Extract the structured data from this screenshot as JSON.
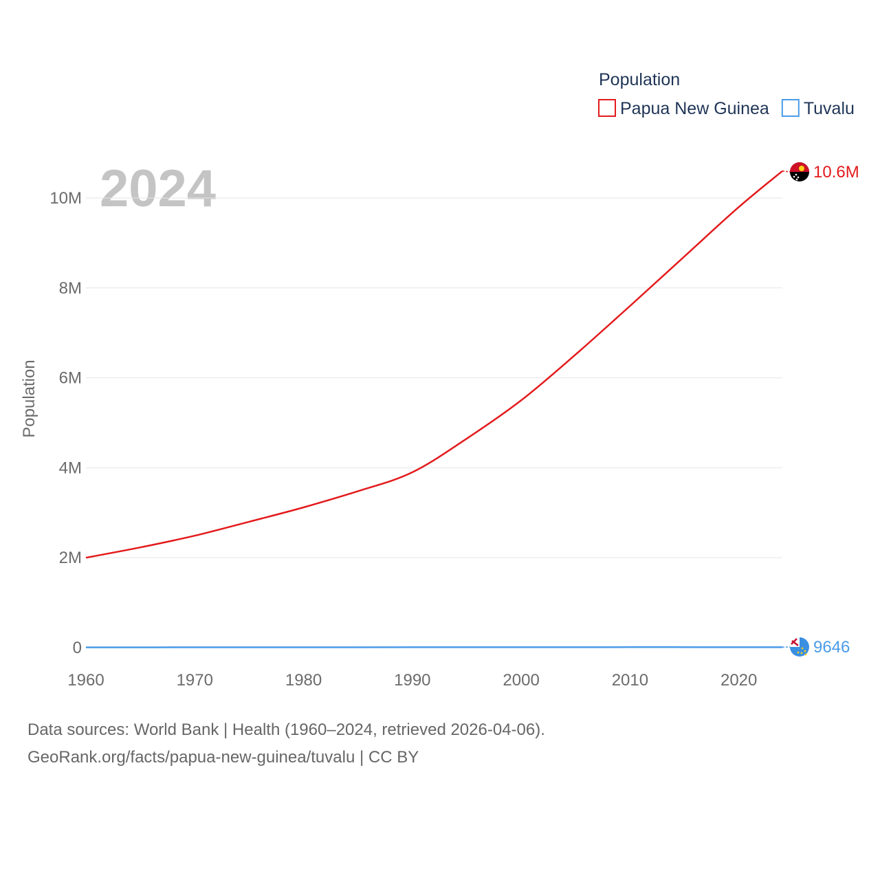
{
  "chart_data": {
    "type": "line",
    "title": "Population",
    "ylabel": "Population",
    "xlabel": "",
    "year_label": "2024",
    "xlim": [
      1960,
      2024
    ],
    "ylim": [
      0,
      10000000
    ],
    "x_ticks": [
      {
        "value": 1960,
        "label": "1960"
      },
      {
        "value": 1970,
        "label": "1970"
      },
      {
        "value": 1980,
        "label": "1980"
      },
      {
        "value": 1990,
        "label": "1990"
      },
      {
        "value": 2000,
        "label": "2000"
      },
      {
        "value": 2010,
        "label": "2010"
      },
      {
        "value": 2020,
        "label": "2020"
      }
    ],
    "y_ticks": [
      {
        "value": 0,
        "label": "0"
      },
      {
        "value": 2000000,
        "label": "2M"
      },
      {
        "value": 4000000,
        "label": "4M"
      },
      {
        "value": 6000000,
        "label": "6M"
      },
      {
        "value": 8000000,
        "label": "8M"
      },
      {
        "value": 10000000,
        "label": "10M"
      }
    ],
    "grid": true,
    "legend_position": "top-right",
    "series": [
      {
        "name": "Papua New Guinea",
        "color": "#e31a1c",
        "end_label": "10.6M",
        "flag_icon": "papua-new-guinea-flag-icon",
        "x": [
          1960,
          1965,
          1970,
          1975,
          1980,
          1985,
          1990,
          1995,
          2000,
          2005,
          2010,
          2015,
          2020,
          2024
        ],
        "values": [
          2000000,
          2230000,
          2490000,
          2800000,
          3120000,
          3480000,
          3900000,
          4650000,
          5500000,
          6520000,
          7600000,
          8700000,
          9800000,
          10600000
        ]
      },
      {
        "name": "Tuvalu",
        "color": "#4a9be8",
        "end_label": "9646",
        "flag_icon": "tuvalu-flag-icon",
        "x": [
          1960,
          1970,
          1980,
          1990,
          2000,
          2010,
          2020,
          2024
        ],
        "values": [
          6000,
          6900,
          7800,
          9100,
          9600,
          10500,
          9900,
          9646
        ]
      }
    ]
  },
  "footer": {
    "line1": "Data sources: World Bank | Health (1960–2024, retrieved 2026-04-06).",
    "line2": "GeoRank.org/facts/papua-new-guinea/tuvalu | CC BY"
  }
}
